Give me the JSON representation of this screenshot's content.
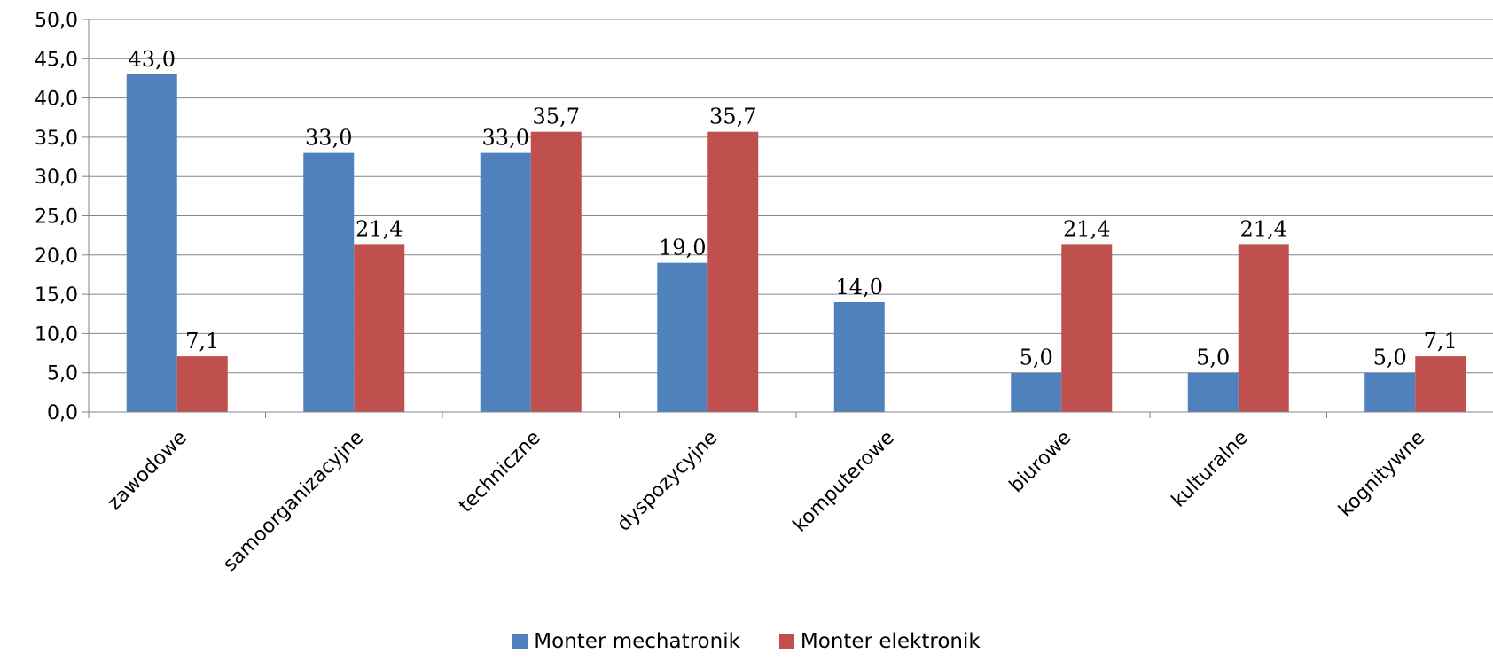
{
  "chart_data": {
    "type": "bar",
    "title": "",
    "xlabel": "",
    "ylabel": "",
    "ylim": [
      0,
      50
    ],
    "yticks": [
      "0,0",
      "5,0",
      "10,0",
      "15,0",
      "20,0",
      "25,0",
      "30,0",
      "35,0",
      "40,0",
      "45,0",
      "50,0"
    ],
    "grid": true,
    "legend_position": "bottom",
    "categories": [
      "zawodowe",
      "samoorganizacyjne",
      "techniczne",
      "dyspozycyjne",
      "komputerowe",
      "biurowe",
      "kulturalne",
      "kognitywne"
    ],
    "series": [
      {
        "name": "Monter mechatronik",
        "color": "#4F81BD",
        "values": [
          43.0,
          33.0,
          33.0,
          19.0,
          14.0,
          5.0,
          5.0,
          5.0
        ],
        "labels": [
          "43,0",
          "33,0",
          "33,0",
          "19,0",
          "14,0",
          "5,0",
          "5,0",
          "5,0"
        ]
      },
      {
        "name": "Monter elektronik",
        "color": "#C0504D",
        "values": [
          7.1,
          21.4,
          35.7,
          35.7,
          null,
          21.4,
          21.4,
          7.1
        ],
        "labels": [
          "7,1",
          "21,4",
          "35,7",
          "35,7",
          null,
          "21,4",
          "21,4",
          "7,1"
        ]
      }
    ]
  }
}
